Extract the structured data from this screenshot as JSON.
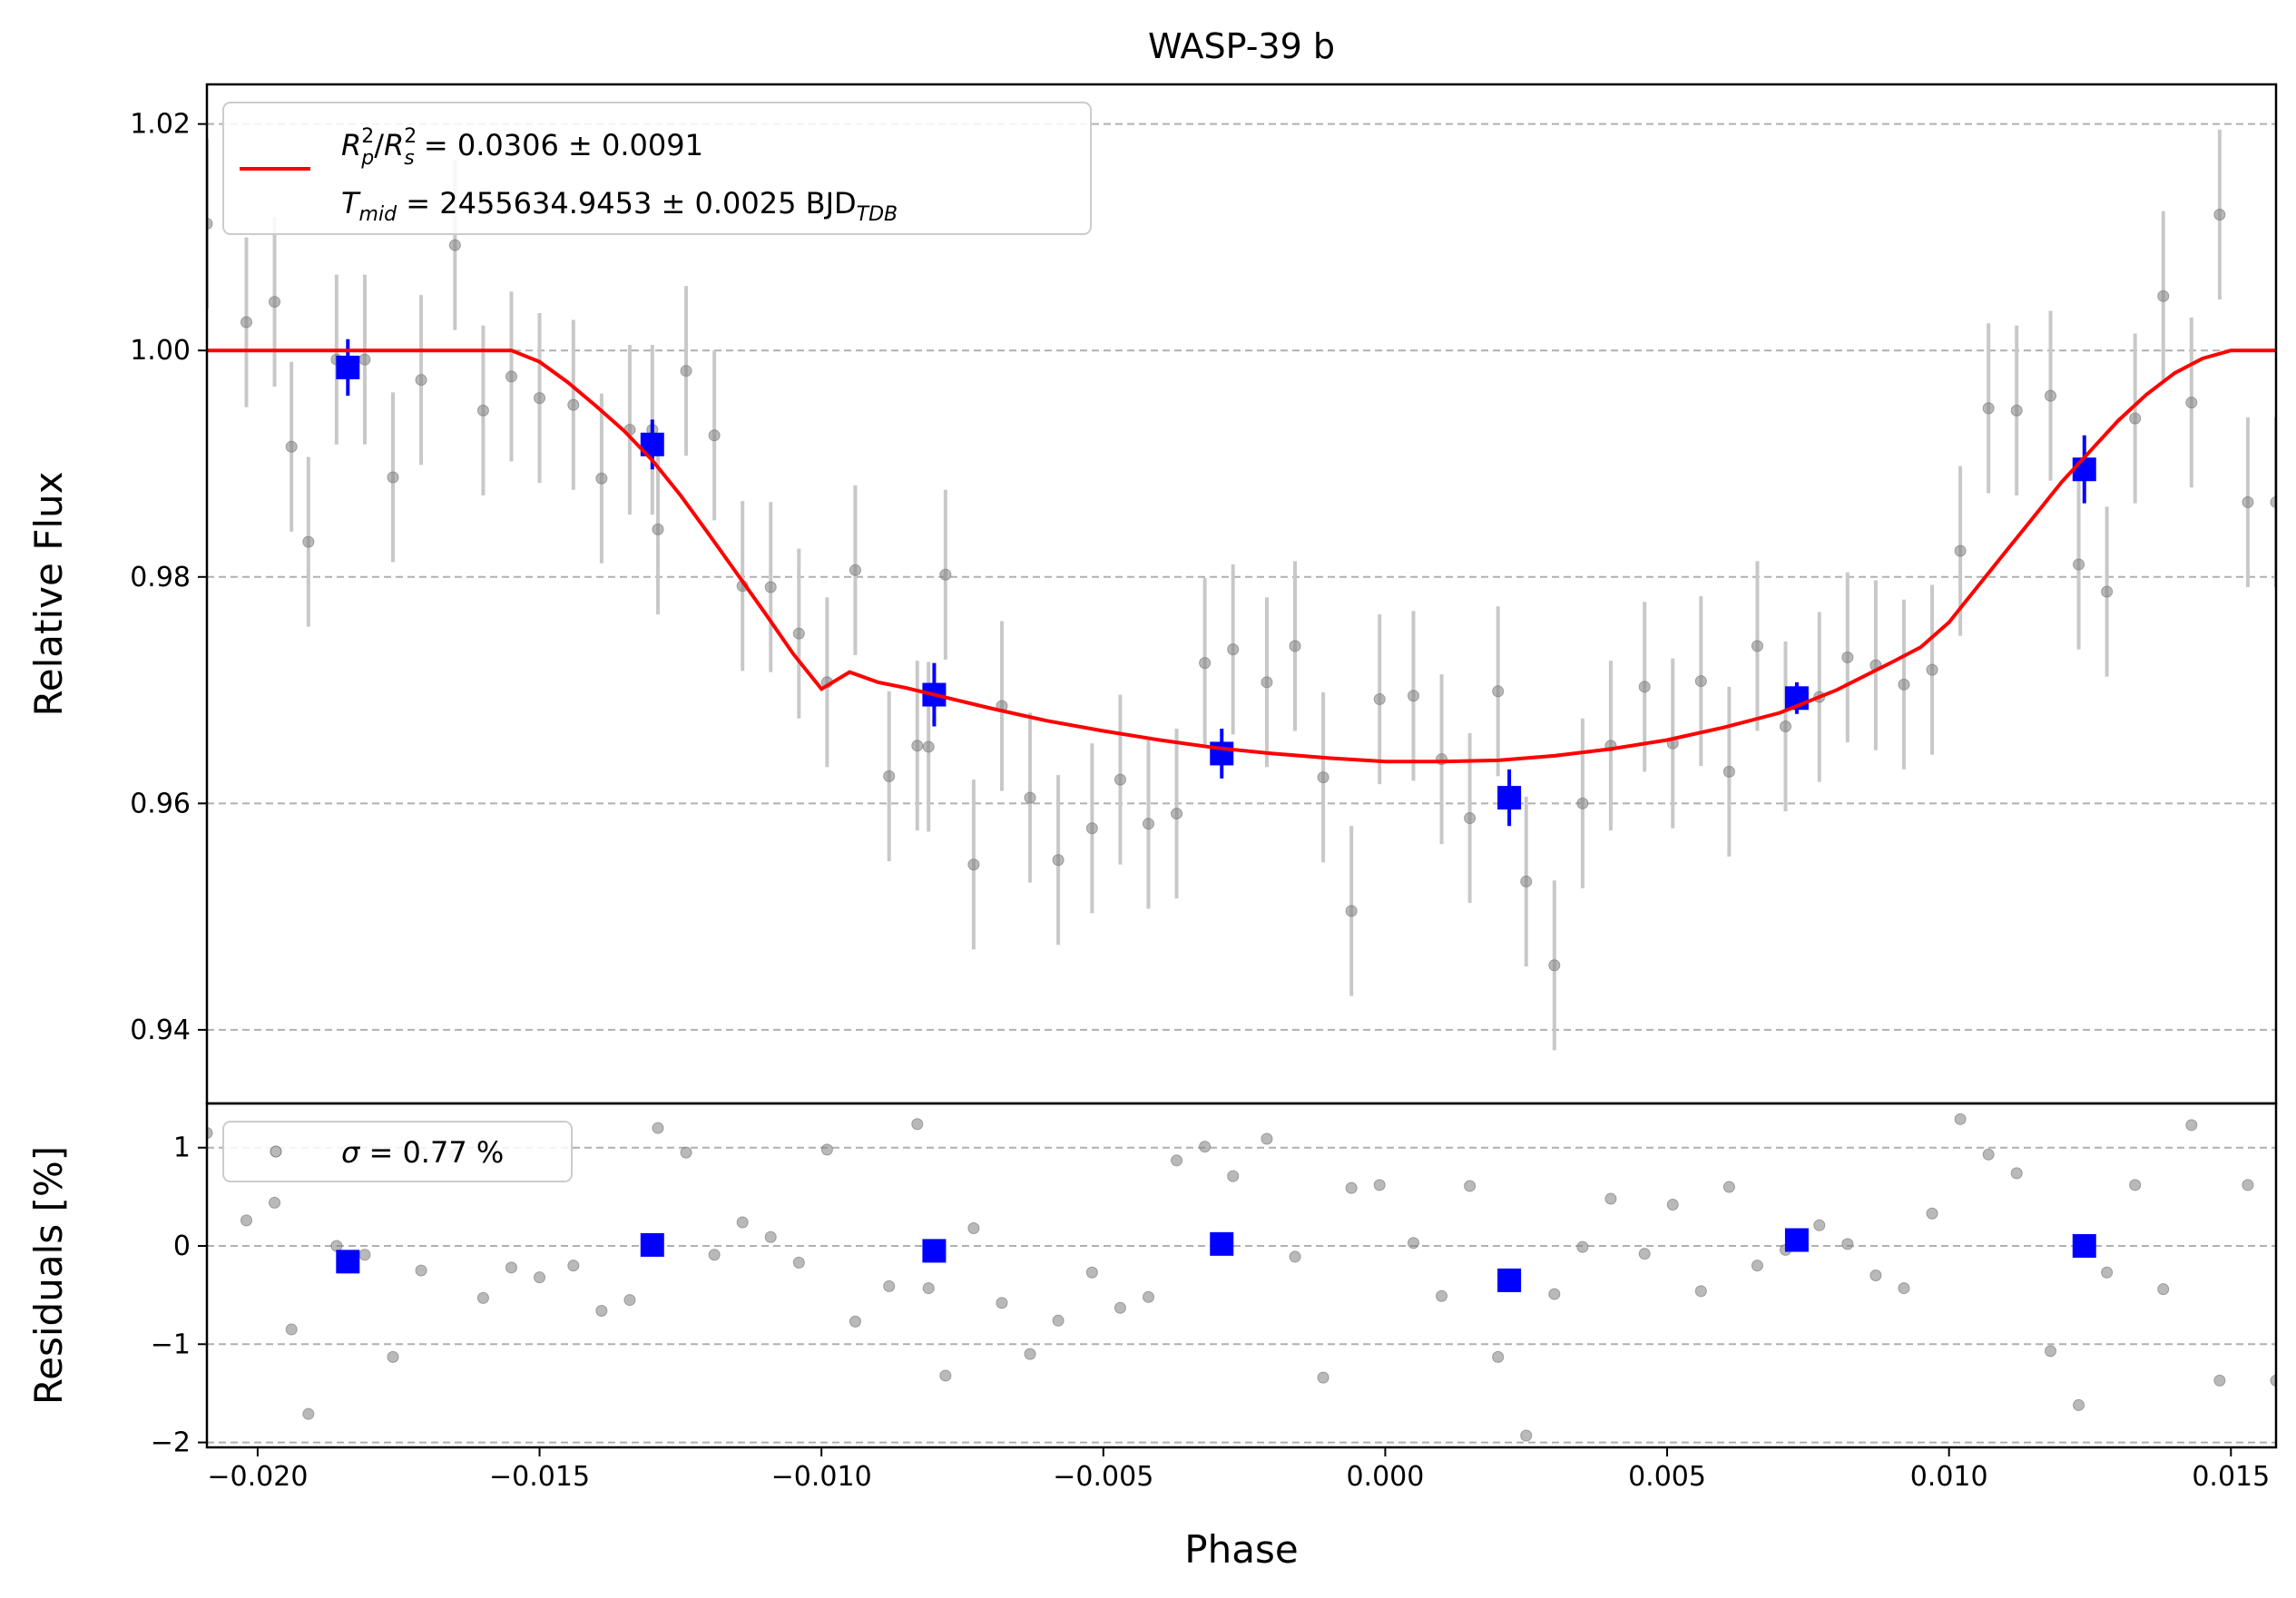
{
  "chart_data": [
    {
      "type": "scatter",
      "title": "WASP-39 b",
      "xlabel": "",
      "ylabel": "Relative Flux",
      "xlim": [
        -0.0209,
        0.0158
      ],
      "ylim": [
        0.9335,
        1.0235
      ],
      "grid": "y-dashed",
      "yticks": [
        0.94,
        0.96,
        0.98,
        1.0,
        1.02
      ],
      "ytick_labels": [
        "0.94",
        "0.96",
        "0.98",
        "1.00",
        "1.02"
      ],
      "legend": {
        "placement": "top-left",
        "entries": [
          {
            "kind": "line",
            "color": "#ff0000",
            "lines": [
              {
                "sym": "R",
                "sub": "p",
                "sup": "2",
                "sep": "/",
                "sym2": "R",
                "sub2": "s",
                "sup2": "2",
                "tail": " = 0.0306 ± 0.0091"
              },
              {
                "sym": "T",
                "sub": "mid",
                "tail": " = 2455634.9453 ± 0.0025 BJD",
                "tailsub": "TDB"
              }
            ]
          }
        ]
      },
      "series": [
        {
          "kind": "raw",
          "color": "#808080",
          "x": [
            -0.0209,
            -0.0202,
            -0.0197,
            -0.0194,
            -0.0191,
            -0.0181,
            -0.0176,
            -0.0171,
            -0.0165,
            -0.016,
            -0.0155,
            -0.015,
            -0.0144,
            -0.0139,
            -0.0134,
            -0.0129,
            -0.0124,
            -0.0119,
            -0.0114,
            -0.0109,
            -0.0104,
            -0.0099,
            -0.0094,
            -0.0088,
            -0.0083,
            -0.0078,
            -0.0073,
            -0.0068,
            -0.0063,
            -0.0058,
            -0.0052,
            -0.0047,
            -0.0042,
            -0.0037,
            -0.0032,
            -0.0027,
            -0.0021,
            -0.0016,
            -0.0011,
            -0.0006,
            -0.0001,
            0.0005,
            0.001,
            0.0015,
            0.002,
            0.0025,
            0.003,
            0.0035,
            0.004,
            0.0046,
            0.0051,
            0.0056,
            0.0061,
            0.0066,
            0.0071,
            0.0077,
            0.0082,
            0.0087,
            0.0092,
            0.0097,
            0.0102,
            0.0107,
            0.0112,
            0.0118,
            0.0123,
            0.0128,
            0.0133,
            0.0138,
            0.0143,
            0.0148,
            0.0153,
            0.0158,
            -0.0186,
            -0.013,
            -0.0081
          ],
          "y": [
            1.0112,
            1.0025,
            1.0043,
            0.9915,
            0.9831,
            0.9992,
            0.9888,
            0.9974,
            1.0093,
            0.9947,
            0.9977,
            0.9958,
            0.9952,
            0.9887,
            0.993,
            0.9842,
            0.9982,
            0.9925,
            0.9792,
            0.9791,
            0.975,
            0.9707,
            0.9806,
            0.9624,
            0.9651,
            0.9802,
            0.9546,
            0.9686,
            0.9605,
            0.955,
            0.9578,
            0.9621,
            0.9582,
            0.9591,
            0.9724,
            0.9736,
            0.9707,
            0.9739,
            0.9623,
            0.9505,
            0.9692,
            0.9695,
            0.9639,
            0.9587,
            0.9699,
            0.9531,
            0.9457,
            0.96,
            0.9651,
            0.9703,
            0.9653,
            0.9708,
            0.9628,
            0.9739,
            0.9668,
            0.9694,
            0.9729,
            0.9722,
            0.9705,
            0.9718,
            0.9823,
            0.9949,
            0.9947,
            0.996,
            0.9811,
            0.9787,
            0.994,
            1.0048,
            0.9954,
            1.012,
            0.9866,
            0.9866,
            0.9992,
            0.993,
            0.965
          ],
          "err": 0.0075
        },
        {
          "kind": "binned",
          "color": "#0000ff",
          "x": [
            -0.0184,
            -0.013,
            -0.008,
            -0.0029,
            0.0022,
            0.0073,
            0.0124
          ],
          "y": [
            0.9985,
            0.9917,
            0.9696,
            0.9644,
            0.9605,
            0.9693,
            0.9895
          ],
          "err": [
            0.0025,
            0.0022,
            0.0028,
            0.0022,
            0.0025,
            0.0014,
            0.003
          ]
        },
        {
          "kind": "model",
          "color": "#ff0000",
          "x": [
            -0.0209,
            -0.0155,
            -0.015,
            -0.0145,
            -0.014,
            -0.0135,
            -0.013,
            -0.0125,
            -0.012,
            -0.0115,
            -0.011,
            -0.0105,
            -0.01,
            -0.0095,
            -0.009,
            -0.0085,
            -0.008,
            -0.007,
            -0.006,
            -0.005,
            -0.004,
            -0.003,
            -0.002,
            -0.001,
            0.0,
            0.001,
            0.002,
            0.003,
            0.004,
            0.005,
            0.006,
            0.007,
            0.008,
            0.009,
            0.0095,
            0.01,
            0.0105,
            0.011,
            0.0115,
            0.012,
            0.0125,
            0.013,
            0.0135,
            0.014,
            0.0145,
            0.015,
            0.0155,
            0.0158
          ],
          "y": [
            1.0,
            1.0,
            0.999,
            0.9972,
            0.9951,
            0.9929,
            0.9903,
            0.9872,
            0.9838,
            0.9803,
            0.9768,
            0.9732,
            0.9701,
            0.9716,
            0.9707,
            0.9702,
            0.9696,
            0.9684,
            0.9673,
            0.9664,
            0.9656,
            0.9649,
            0.9644,
            0.964,
            0.9637,
            0.9637,
            0.9638,
            0.9642,
            0.9648,
            0.9656,
            0.9667,
            0.968,
            0.97,
            0.9725,
            0.9738,
            0.976,
            0.9791,
            0.9822,
            0.9853,
            0.9884,
            0.9911,
            0.9938,
            0.9961,
            0.998,
            0.9993,
            1.0,
            1.0,
            1.0
          ]
        }
      ]
    },
    {
      "type": "scatter",
      "xlabel": "Phase",
      "ylabel": "Residuals [%]",
      "xlim": [
        -0.0209,
        0.0158
      ],
      "ylim": [
        -2.05,
        1.45
      ],
      "grid": "y-dashed",
      "xticks": [
        -0.02,
        -0.015,
        -0.01,
        -0.005,
        0.0,
        0.005,
        0.01,
        0.015
      ],
      "xtick_labels": [
        "−0.020",
        "−0.015",
        "−0.010",
        "−0.005",
        "0.000",
        "0.005",
        "0.010",
        "0.015"
      ],
      "yticks": [
        -2,
        -1,
        0,
        1
      ],
      "ytick_labels": [
        "−2",
        "−1",
        "0",
        "1"
      ],
      "legend": {
        "placement": "top-left",
        "entries": [
          {
            "kind": "marker",
            "color": "#808080",
            "sym": "σ",
            "tail": " = 0.77 %"
          }
        ]
      },
      "series": [
        {
          "kind": "raw",
          "color": "#808080",
          "x": [
            -0.0209,
            -0.0202,
            -0.0197,
            -0.0194,
            -0.0191,
            -0.0181,
            -0.0176,
            -0.0171,
            -0.0165,
            -0.016,
            -0.0155,
            -0.015,
            -0.0144,
            -0.0139,
            -0.0134,
            -0.0129,
            -0.0124,
            -0.0119,
            -0.0114,
            -0.0109,
            -0.0104,
            -0.0099,
            -0.0094,
            -0.0088,
            -0.0083,
            -0.0078,
            -0.0073,
            -0.0068,
            -0.0063,
            -0.0058,
            -0.0052,
            -0.0047,
            -0.0042,
            -0.0037,
            -0.0032,
            -0.0027,
            -0.0021,
            -0.0016,
            -0.0011,
            -0.0006,
            -0.0001,
            0.0005,
            0.001,
            0.0015,
            0.002,
            0.0025,
            0.003,
            0.0035,
            0.004,
            0.0046,
            0.0051,
            0.0056,
            0.0061,
            0.0066,
            0.0071,
            0.0077,
            0.0082,
            0.0087,
            0.0092,
            0.0097,
            0.0102,
            0.0107,
            0.0112,
            0.0118,
            0.0123,
            0.0128,
            0.0133,
            0.0138,
            0.0143,
            0.0148,
            0.0153,
            0.0158,
            -0.0186,
            -0.013,
            -0.0081
          ],
          "y": [
            1.15,
            0.26,
            0.44,
            -0.85,
            -1.71,
            -0.09,
            -1.13,
            -0.25,
            0.93,
            -0.53,
            -0.22,
            -0.32,
            -0.2,
            -0.66,
            -0.55,
            1.2,
            0.95,
            -0.09,
            0.24,
            0.09,
            -0.17,
            0.98,
            -0.77,
            -0.41,
            1.24,
            -1.32,
            0.18,
            -0.58,
            -1.1,
            -0.76,
            -0.27,
            -0.63,
            -0.52,
            0.87,
            1.01,
            0.71,
            1.09,
            -0.11,
            -1.34,
            0.59,
            0.62,
            0.03,
            -0.51,
            0.61,
            -1.13,
            -1.93,
            -0.49,
            -0.01,
            0.48,
            -0.08,
            0.42,
            -0.46,
            0.6,
            -0.2,
            -0.04,
            0.21,
            0.02,
            -0.3,
            -0.43,
            0.33,
            1.29,
            0.93,
            0.74,
            -1.07,
            -1.62,
            -0.27,
            0.62,
            -0.44,
            1.23,
            -1.37,
            0.62,
            -1.37,
            0.0,
            0.03,
            -0.43
          ]
        },
        {
          "kind": "binned",
          "color": "#0000ff",
          "x": [
            -0.0184,
            -0.013,
            -0.008,
            -0.0029,
            0.0022,
            0.0073,
            0.0124
          ],
          "y": [
            -0.16,
            0.01,
            -0.05,
            0.02,
            -0.35,
            0.06,
            0.0
          ]
        }
      ]
    }
  ]
}
